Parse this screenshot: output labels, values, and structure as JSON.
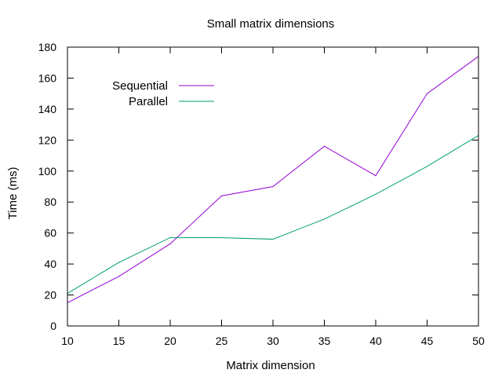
{
  "chart_data": {
    "type": "line",
    "title": "Small matrix dimensions",
    "xlabel": "Matrix dimension",
    "ylabel": "Time (ms)",
    "xlim": [
      10,
      50
    ],
    "ylim": [
      0,
      180
    ],
    "x_ticks": [
      10,
      15,
      20,
      25,
      30,
      35,
      40,
      45,
      50
    ],
    "y_ticks": [
      0,
      20,
      40,
      60,
      80,
      100,
      120,
      140,
      160,
      180
    ],
    "grid": false,
    "legend_position": "top-left",
    "x": [
      10,
      15,
      20,
      25,
      30,
      35,
      40,
      45,
      50
    ],
    "series": [
      {
        "name": "Sequential",
        "color": "#9400d3",
        "values": [
          15,
          32,
          53,
          84,
          90,
          116,
          97,
          150,
          174
        ]
      },
      {
        "name": "Parallel",
        "color": "#009e73",
        "values": [
          21,
          41,
          57,
          57,
          56,
          69,
          85,
          103,
          123
        ]
      }
    ]
  }
}
